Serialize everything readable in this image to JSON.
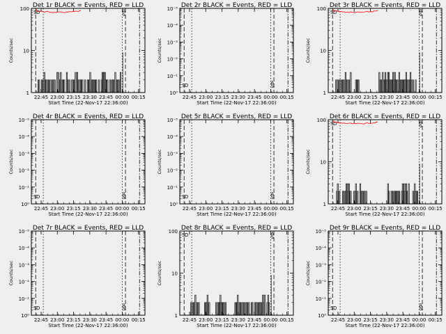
{
  "figure": {
    "xticks": [
      "22:45",
      "23:00",
      "23:15",
      "23:30",
      "23:45",
      "00:00",
      "00:15"
    ],
    "xlabel": "Start Time (22-Nov-17 22:36:00)",
    "ylabel": "Counts/sec",
    "colors": {
      "background": "#efefef",
      "events": "#000000",
      "lld": "#ff0000"
    },
    "legend_marks": [
      "S",
      "A",
      "D"
    ]
  },
  "chart_data": [
    {
      "type": "line",
      "title": "Det 1r BLACK = Events, RED = LLD",
      "y_scale": "log",
      "ylim": [
        1,
        100
      ],
      "yticks": [
        "1",
        "10",
        "100"
      ],
      "events": "spiky",
      "lld": "high"
    },
    {
      "type": "line",
      "title": "Det 2r BLACK = Events, RED = LLD",
      "y_scale": "log",
      "ylim": [
        1,
        1e-05
      ],
      "yticks": [
        "10⁰",
        "10⁻¹",
        "10⁻²",
        "10⁻³",
        "10⁻⁴",
        "10⁻⁵"
      ],
      "events": "none",
      "lld": "none"
    },
    {
      "type": "line",
      "title": "Det 3r BLACK = Events, RED = LLD",
      "y_scale": "log",
      "ylim": [
        1,
        100
      ],
      "yticks": [
        "1",
        "10",
        "100"
      ],
      "events": "spiky",
      "lld": "high"
    },
    {
      "type": "line",
      "title": "Det 4r BLACK = Events, RED = LLD",
      "y_scale": "log",
      "ylim": [
        1,
        1e-05
      ],
      "yticks": [
        "10⁰",
        "10⁻¹",
        "10⁻²",
        "10⁻³",
        "10⁻⁴",
        "10⁻⁵"
      ],
      "events": "none",
      "lld": "none"
    },
    {
      "type": "line",
      "title": "Det 5r BLACK = Events, RED = LLD",
      "y_scale": "log",
      "ylim": [
        1,
        1e-05
      ],
      "yticks": [
        "10⁰",
        "10⁻¹",
        "10⁻²",
        "10⁻³",
        "10⁻⁴",
        "10⁻⁵"
      ],
      "events": "none",
      "lld": "none"
    },
    {
      "type": "line",
      "title": "Det 6r BLACK = Events, RED = LLD",
      "y_scale": "log",
      "ylim": [
        1,
        100
      ],
      "yticks": [
        "1",
        "10",
        "100"
      ],
      "events": "spiky",
      "lld": "high"
    },
    {
      "type": "line",
      "title": "Det 7r BLACK = Events, RED = LLD",
      "y_scale": "log",
      "ylim": [
        1,
        1e-05
      ],
      "yticks": [
        "10⁰",
        "10⁻¹",
        "10⁻²",
        "10⁻³",
        "10⁻⁴",
        "10⁻⁵"
      ],
      "events": "none",
      "lld": "none"
    },
    {
      "type": "line",
      "title": "Det 8r BLACK = Events, RED = LLD",
      "y_scale": "log",
      "ylim": [
        1,
        100
      ],
      "yticks": [
        "1",
        "10",
        "100"
      ],
      "events": "spiky",
      "lld": "none"
    },
    {
      "type": "line",
      "title": "Det 9r BLACK = Events, RED = LLD",
      "y_scale": "log",
      "ylim": [
        1,
        1e-05
      ],
      "yticks": [
        "10⁰",
        "10⁻¹",
        "10⁻²",
        "10⁻³",
        "10⁻⁴",
        "10⁻⁵"
      ],
      "events": "none",
      "lld": "none"
    }
  ]
}
